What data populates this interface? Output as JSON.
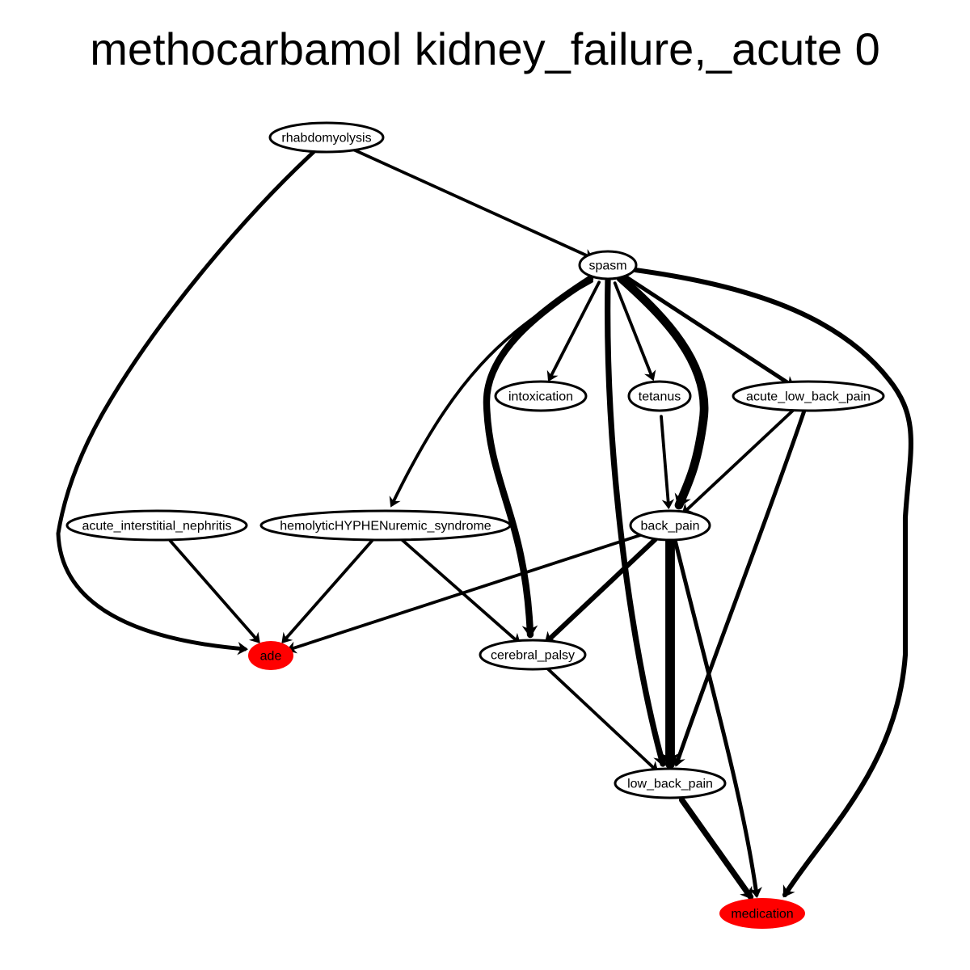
{
  "title": "methocarbamol kidney_failure,_acute 0",
  "colors": {
    "highlight": "#ff0000",
    "edge": "#000000",
    "node_fill": "#ffffff"
  },
  "nodes": [
    {
      "id": "rhabdomyolysis",
      "label": "rhabdomyolysis",
      "highlight": false
    },
    {
      "id": "spasm",
      "label": "spasm",
      "highlight": false
    },
    {
      "id": "intoxication",
      "label": "intoxication",
      "highlight": false
    },
    {
      "id": "tetanus",
      "label": "tetanus",
      "highlight": false
    },
    {
      "id": "acute_low_back_pain",
      "label": "acute_low_back_pain",
      "highlight": false
    },
    {
      "id": "acute_interstitial_nephritis",
      "label": "acute_interstitial_nephritis",
      "highlight": false
    },
    {
      "id": "hemolytic_uremic_syndrome",
      "label": "hemolyticHYPHENuremic_syndrome",
      "highlight": false
    },
    {
      "id": "back_pain",
      "label": "back_pain",
      "highlight": false
    },
    {
      "id": "ade",
      "label": "ade",
      "highlight": true
    },
    {
      "id": "cerebral_palsy",
      "label": "cerebral_palsy",
      "highlight": false
    },
    {
      "id": "low_back_pain",
      "label": "low_back_pain",
      "highlight": false
    },
    {
      "id": "medication",
      "label": "medication",
      "highlight": true
    }
  ],
  "edges": [
    {
      "from": "rhabdomyolysis",
      "to": "spasm",
      "weight": 2
    },
    {
      "from": "rhabdomyolysis",
      "to": "ade",
      "weight": 3
    },
    {
      "from": "spasm",
      "to": "intoxication",
      "weight": 2
    },
    {
      "from": "spasm",
      "to": "tetanus",
      "weight": 2
    },
    {
      "from": "spasm",
      "to": "acute_low_back_pain",
      "weight": 3
    },
    {
      "from": "spasm",
      "to": "hemolytic_uremic_syndrome",
      "weight": 2
    },
    {
      "from": "spasm",
      "to": "cerebral_palsy",
      "weight": 6
    },
    {
      "from": "spasm",
      "to": "back_pain",
      "weight": 8
    },
    {
      "from": "spasm",
      "to": "low_back_pain",
      "weight": 5
    },
    {
      "from": "spasm",
      "to": "medication",
      "weight": 4
    },
    {
      "from": "tetanus",
      "to": "back_pain",
      "weight": 2
    },
    {
      "from": "acute_low_back_pain",
      "to": "back_pain",
      "weight": 2
    },
    {
      "from": "acute_low_back_pain",
      "to": "low_back_pain",
      "weight": 3
    },
    {
      "from": "acute_interstitial_nephritis",
      "to": "ade",
      "weight": 2
    },
    {
      "from": "hemolytic_uremic_syndrome",
      "to": "ade",
      "weight": 2
    },
    {
      "from": "hemolytic_uremic_syndrome",
      "to": "cerebral_palsy",
      "weight": 2
    },
    {
      "from": "back_pain",
      "to": "ade",
      "weight": 2
    },
    {
      "from": "back_pain",
      "to": "cerebral_palsy",
      "weight": 4
    },
    {
      "from": "back_pain",
      "to": "low_back_pain",
      "weight": 9
    },
    {
      "from": "back_pain",
      "to": "medication",
      "weight": 3
    },
    {
      "from": "cerebral_palsy",
      "to": "low_back_pain",
      "weight": 2
    },
    {
      "from": "low_back_pain",
      "to": "medication",
      "weight": 5
    }
  ]
}
